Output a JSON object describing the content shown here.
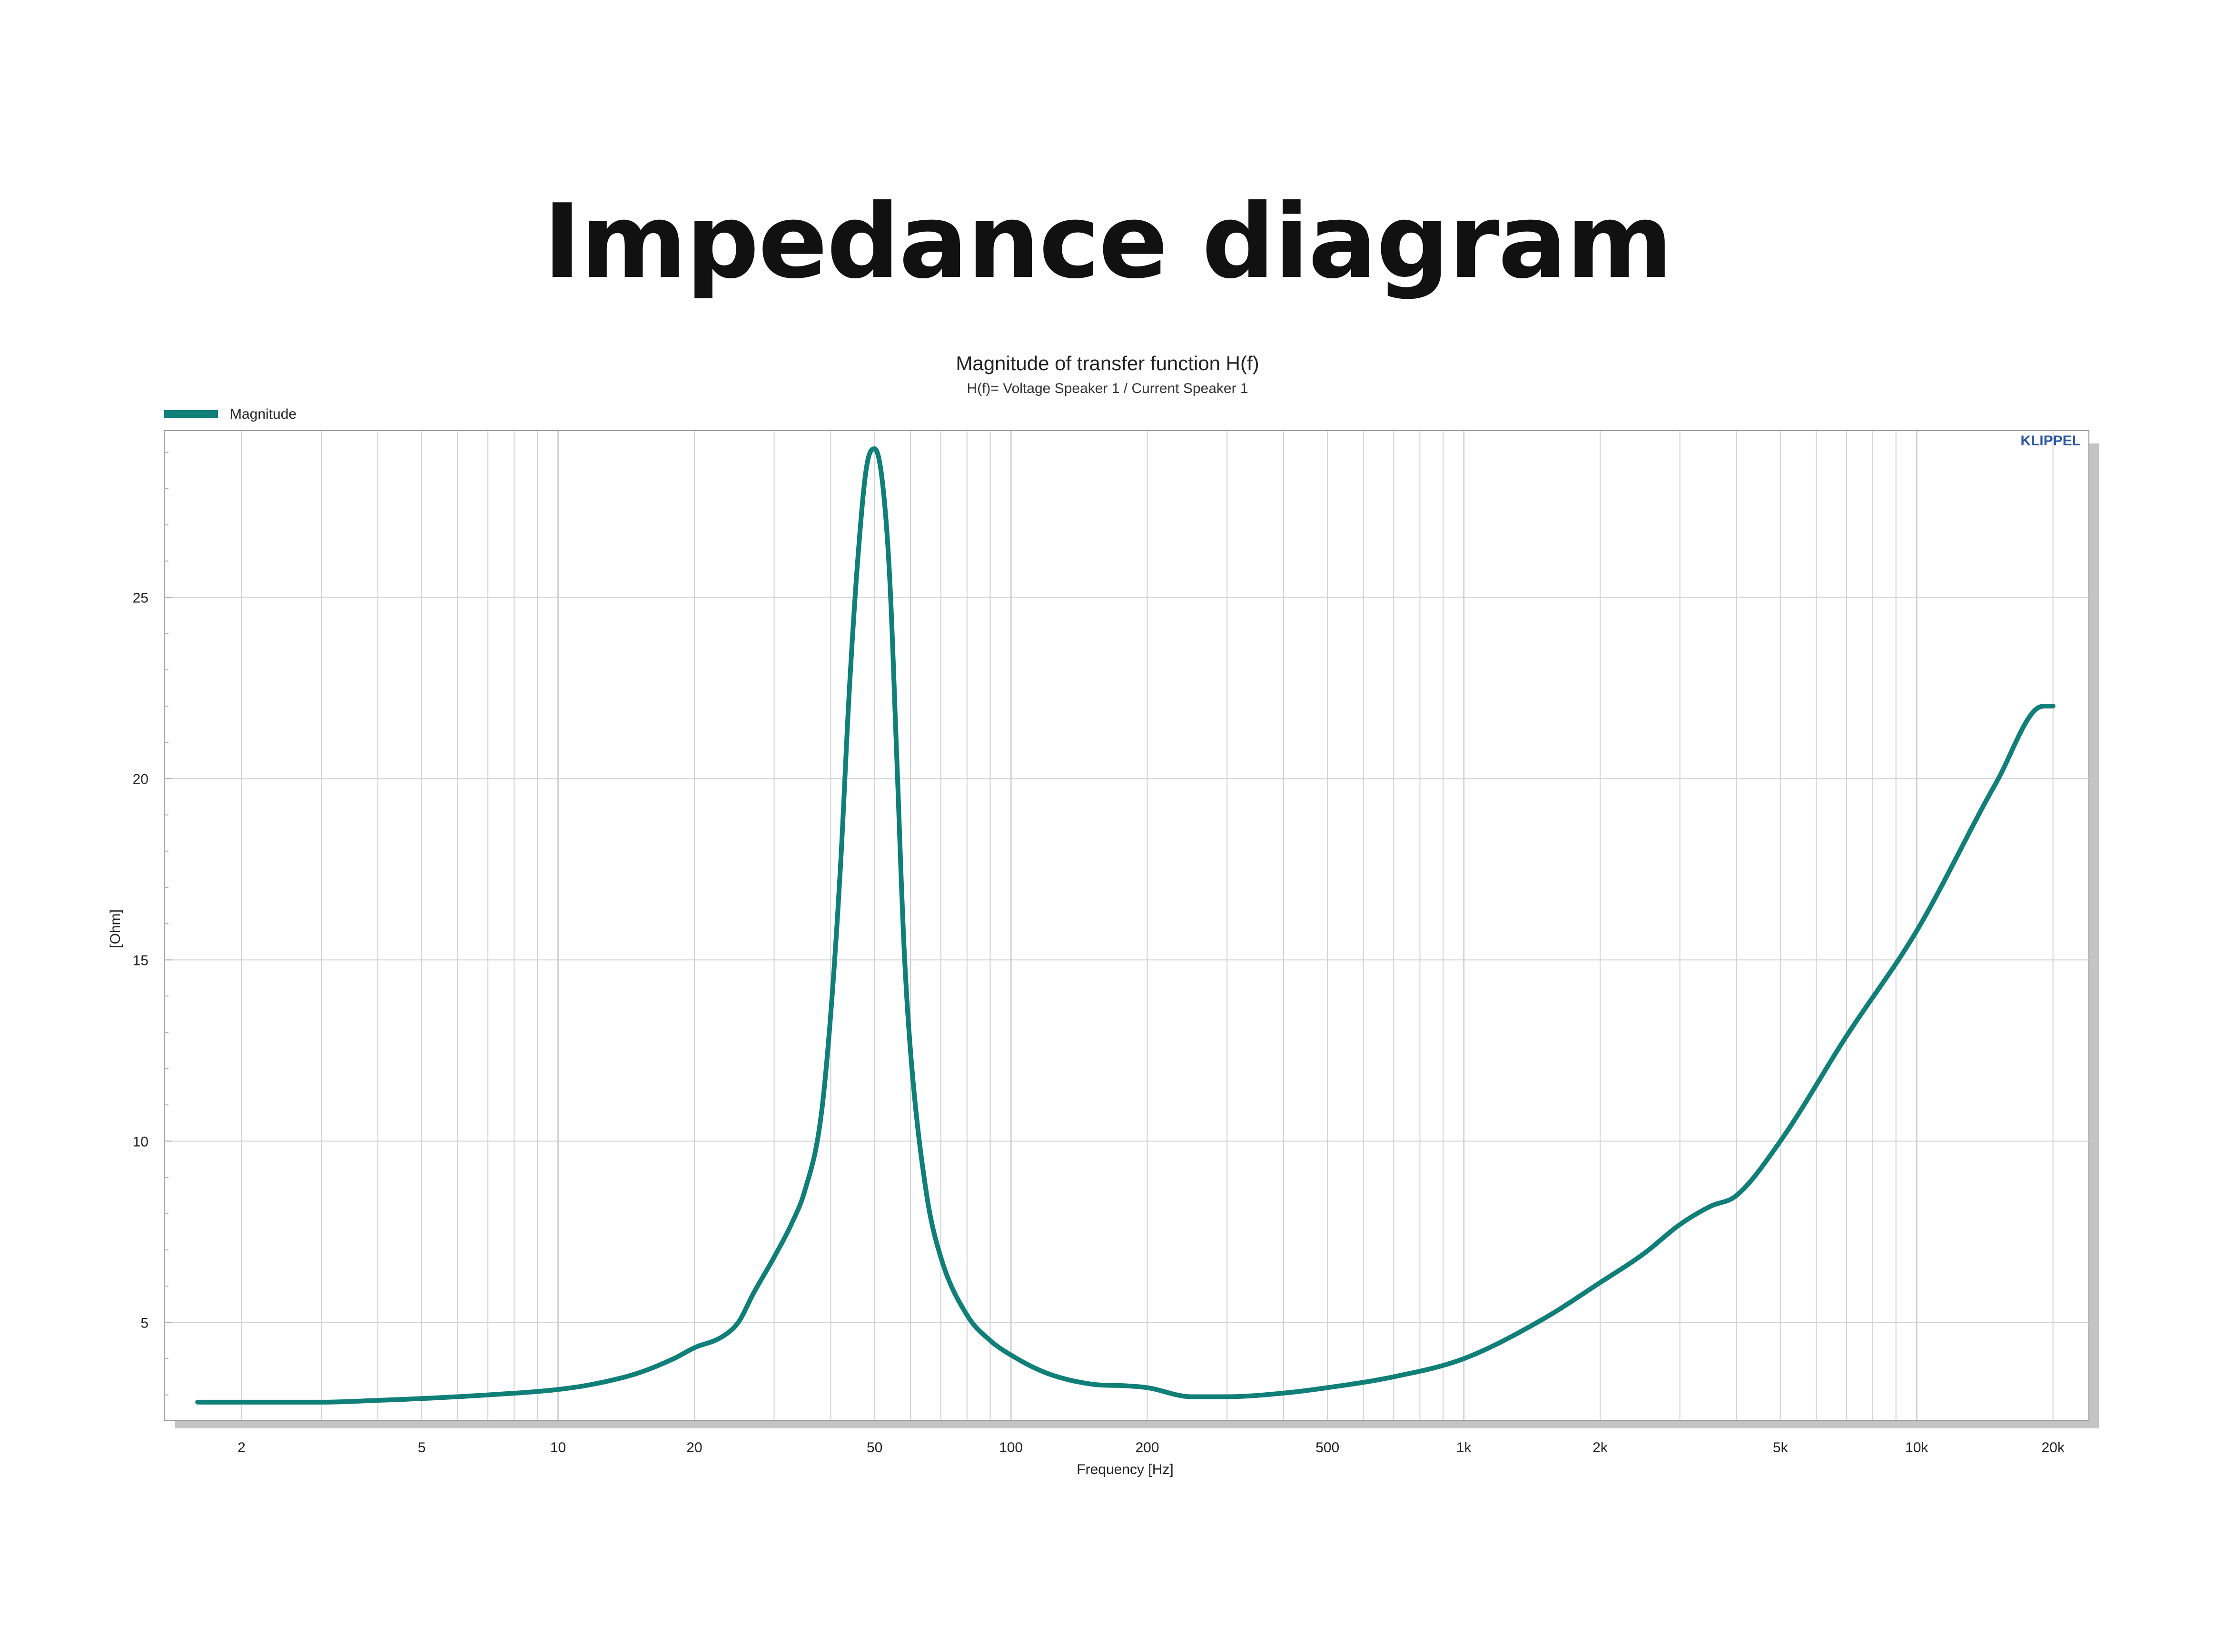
{
  "page_title": "Impedance diagram",
  "chart_data": {
    "type": "line",
    "title": "Magnitude of transfer function H(f)",
    "subtitle": "H(f)= Voltage Speaker 1 / Current Speaker 1",
    "xlabel": "Frequency [Hz]",
    "ylabel": "[Ohm]",
    "x_scale": "log",
    "xlim": [
      1.35,
      24000
    ],
    "ylim": [
      2.3,
      29.6
    ],
    "x_ticks": [
      {
        "value": 2,
        "label": "2"
      },
      {
        "value": 5,
        "label": "5"
      },
      {
        "value": 10,
        "label": "10"
      },
      {
        "value": 20,
        "label": "20"
      },
      {
        "value": 50,
        "label": "50"
      },
      {
        "value": 100,
        "label": "100"
      },
      {
        "value": 200,
        "label": "200"
      },
      {
        "value": 500,
        "label": "500"
      },
      {
        "value": 1000,
        "label": "1k"
      },
      {
        "value": 2000,
        "label": "2k"
      },
      {
        "value": 5000,
        "label": "5k"
      },
      {
        "value": 10000,
        "label": "10k"
      },
      {
        "value": 20000,
        "label": "20k"
      }
    ],
    "y_ticks": [
      {
        "value": 5,
        "label": "5"
      },
      {
        "value": 10,
        "label": "10"
      },
      {
        "value": 15,
        "label": "15"
      },
      {
        "value": 20,
        "label": "20"
      },
      {
        "value": 25,
        "label": "25"
      }
    ],
    "grid": true,
    "legend_position": "top-left",
    "watermark": "KLIPPEL",
    "colors": {
      "series": "#0f7f78",
      "grid": "#d2d2d2",
      "frame": "#9a9a9a",
      "shadow": "#c4c4c4",
      "watermark": "#2b57a3",
      "text": "#222222"
    },
    "series": [
      {
        "name": "Magnitude",
        "x": [
          1.6,
          2,
          3,
          4,
          5,
          7,
          10,
          12,
          15,
          18,
          20,
          23,
          25,
          27,
          30,
          33,
          35,
          38,
          40,
          42,
          44,
          46,
          48,
          50,
          52,
          54,
          56,
          58,
          60,
          65,
          70,
          80,
          90,
          100,
          120,
          150,
          180,
          200,
          250,
          300,
          400,
          500,
          700,
          1000,
          1500,
          2000,
          2500,
          3000,
          3500,
          4000,
          5000,
          7000,
          10000,
          15000,
          19000,
          20000
        ],
        "values": [
          2.8,
          2.8,
          2.8,
          2.85,
          2.9,
          3.0,
          3.15,
          3.3,
          3.6,
          4.0,
          4.3,
          4.6,
          5.0,
          5.8,
          6.8,
          7.8,
          8.6,
          10.6,
          13.5,
          17.5,
          22.5,
          26.2,
          28.6,
          29.1,
          28.2,
          25.5,
          20.5,
          15.5,
          12.5,
          8.6,
          6.8,
          5.2,
          4.5,
          4.1,
          3.6,
          3.3,
          3.25,
          3.2,
          2.95,
          2.95,
          3.05,
          3.2,
          3.5,
          4.0,
          5.1,
          6.1,
          6.9,
          7.7,
          8.2,
          8.5,
          10.0,
          12.9,
          15.8,
          19.9,
          22.0,
          22.0
        ]
      }
    ]
  }
}
